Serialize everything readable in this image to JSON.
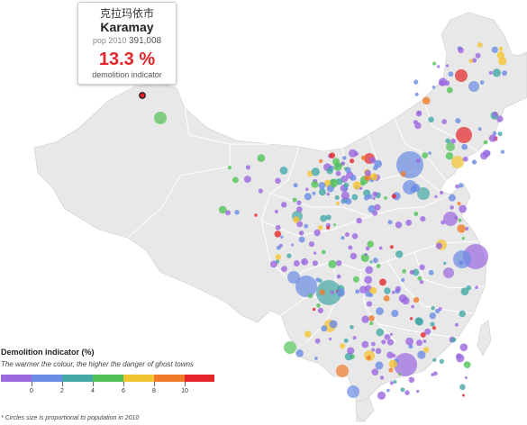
{
  "tooltip": {
    "chinese_name": "克拉玛依市",
    "city": "Karamay",
    "pop_label": "pop 2010",
    "pop_value": "391,008",
    "indicator_value": "13.3 %",
    "indicator_label": "demolition indicator"
  },
  "legend": {
    "title": "Demolition indicator (%)",
    "subtitle": "The warmer the colour, the higher the danger of ghost towns",
    "ticks": [
      "0",
      "2",
      "4",
      "6",
      "8",
      "10"
    ],
    "colors": [
      "#9b68e0",
      "#6a8ce4",
      "#43a8a6",
      "#52c258",
      "#f3c431",
      "#f07a29",
      "#e5252a"
    ]
  },
  "footnote": "* Circles size is proportional to population in 2010",
  "map": {
    "land_color": "#e8e8e8",
    "border_color": "#ffffff",
    "highlight_color": "#e5252a"
  }
}
